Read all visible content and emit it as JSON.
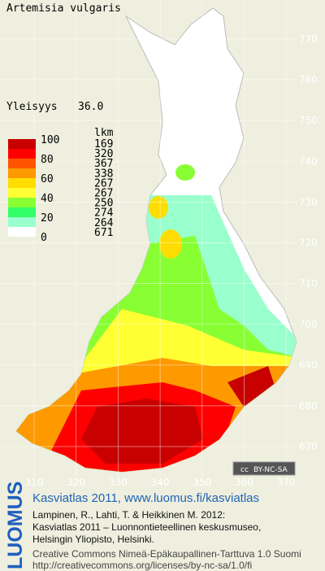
{
  "title": "Artemisia vulgaris",
  "frequency_label": "Yleisyys",
  "frequency_value": "36.0",
  "legend": {
    "scale_labels": [
      100,
      80,
      60,
      40,
      20,
      0
    ],
    "count_header": "lkm",
    "counts": [
      169,
      320,
      367,
      338,
      267,
      267,
      250,
      274,
      264,
      671
    ],
    "colors": [
      "#c80000",
      "#ff0000",
      "#ff5500",
      "#ff9900",
      "#ffdd00",
      "#ffff33",
      "#88ff33",
      "#33ff66",
      "#99ffcc",
      "#ffffff"
    ]
  },
  "grid": {
    "x_labels": [
      310,
      320,
      330,
      340,
      350,
      360,
      370
    ],
    "y_labels": [
      770,
      760,
      750,
      740,
      730,
      720,
      710,
      700,
      690,
      680,
      670
    ]
  },
  "license_badge": {
    "icon": "cc",
    "text": "BY-NC-SA"
  },
  "logo": "LUOMUS",
  "footer": {
    "heading": "Kasviatlas 2011, www.luomus.fi/kasviatlas",
    "citation": [
      "Lampinen, R., Lahti, T. & Heikkinen M. 2012:",
      "Kasviatlas 2011 – Luonnontieteellinen keskusmuseo,",
      "Helsingin Yliopisto, Helsinki."
    ],
    "license": [
      "Creative Commons Nimeä-Epäkaupallinen-Tarttuva 1.0 Suomi",
      "http://creativecommons.org/licenses/by-nc-sa/1.0/fi"
    ]
  }
}
